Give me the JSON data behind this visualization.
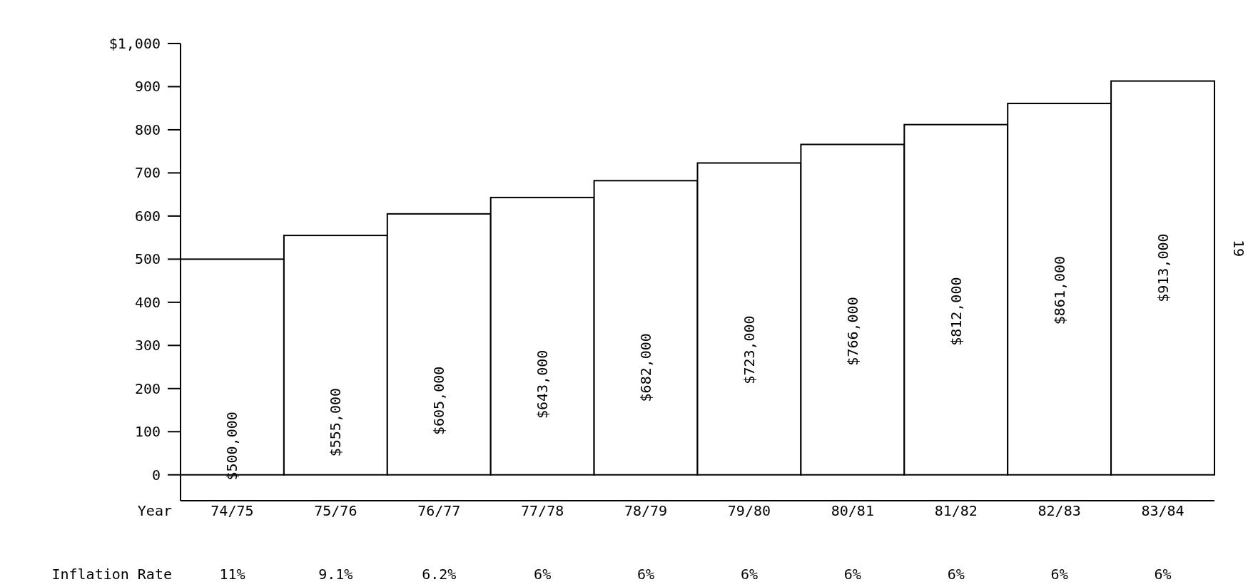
{
  "chart_data": {
    "type": "bar",
    "xlabel": "Year",
    "categories": [
      "74/75",
      "75/76",
      "76/77",
      "77/78",
      "78/79",
      "79/80",
      "80/81",
      "81/82",
      "82/83",
      "83/84"
    ],
    "values": [
      500,
      555,
      605,
      643,
      682,
      723,
      766,
      812,
      861,
      913
    ],
    "color": "#ffffff",
    "ylim": [
      -60,
      1000
    ],
    "yticks": [
      0,
      100,
      200,
      300,
      400,
      500,
      600,
      700,
      800,
      900,
      {
        "value": 1000,
        "label": "$1,000"
      }
    ],
    "grid": false,
    "annotations": [
      "Inflation Rate",
      "11%",
      "9.1%",
      "6.2%",
      "6%",
      "6%",
      "6%",
      "6%",
      "6%",
      "6%",
      "6%",
      "19",
      "$500,000",
      "$555,000",
      "$605,000",
      "$643,000",
      "$682,000",
      "$723,000",
      "$766,000",
      "$812,000",
      "$861,000",
      "$913,000"
    ]
  }
}
